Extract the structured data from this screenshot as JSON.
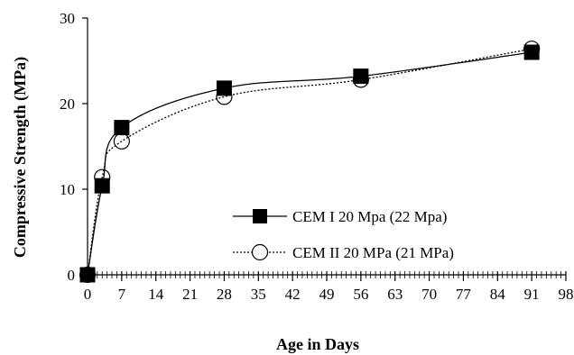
{
  "chart_data": {
    "type": "line",
    "xlabel": "Age in Days",
    "ylabel": "Compressive Strength (MPa)",
    "xlim": [
      0,
      98
    ],
    "ylim": [
      0,
      30
    ],
    "x_ticks": [
      0,
      7,
      14,
      21,
      28,
      35,
      42,
      49,
      56,
      63,
      70,
      77,
      84,
      91,
      98
    ],
    "y_ticks": [
      0,
      10,
      20,
      30
    ],
    "grid": false,
    "legend_position": "bottom-right",
    "series": [
      {
        "name": "CEM I 20 Mpa (22 Mpa)",
        "marker": "filled-square",
        "line": "solid",
        "color": "#000000",
        "x": [
          0,
          3,
          7,
          28,
          56,
          91
        ],
        "y": [
          0,
          10.4,
          17.2,
          21.8,
          23.2,
          26.0
        ]
      },
      {
        "name": "CEM II 20 MPa (21 MPa)",
        "marker": "open-circle",
        "line": "dotted",
        "color": "#000000",
        "x": [
          0,
          3,
          7,
          28,
          56,
          91
        ],
        "y": [
          0,
          11.4,
          15.6,
          20.8,
          22.8,
          26.4
        ]
      }
    ]
  }
}
